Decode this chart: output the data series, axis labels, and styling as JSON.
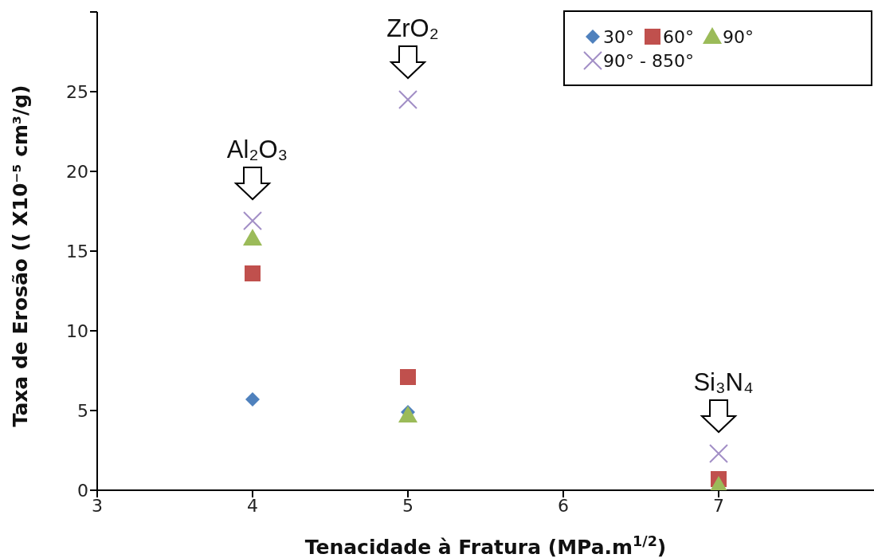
{
  "chart_data": {
    "type": "scatter",
    "xlabel": "Tenacidade à Fratura (MPa.m$^{1/2}$)",
    "ylabel": "Taxa de Erosão (( X10⁻⁵ cm³/g)",
    "x": [
      4,
      5,
      7
    ],
    "xlim": [
      3,
      8
    ],
    "xticks": [
      3,
      4,
      5,
      6,
      7
    ],
    "ylim": [
      0,
      30
    ],
    "yticks": [
      0,
      5,
      10,
      15,
      20,
      25,
      {
        "value": 30,
        "label": null
      }
    ],
    "legend": "top right",
    "series": [
      {
        "name": "30°",
        "color": "#4f81bd",
        "marker": "diamond",
        "values": [
          5.7,
          4.9,
          null
        ]
      },
      {
        "name": "60°",
        "color": "#c0504d",
        "marker": "square",
        "values": [
          13.6,
          7.1,
          0.7
        ]
      },
      {
        "name": "90°",
        "color": "#9bbb59",
        "marker": "triangle",
        "values": [
          15.8,
          4.7,
          0.3
        ]
      },
      {
        "name": "90° - 850°",
        "color": "#a28fc6",
        "marker": "cross",
        "values": [
          16.9,
          24.5,
          2.3
        ]
      }
    ],
    "annotations": [
      {
        "text": "Al₂O₃",
        "x": 4,
        "y": 16.9
      },
      {
        "text": "ZrO₂",
        "x": 5,
        "y": 24.5
      },
      {
        "text": "Si₃N₄",
        "x": 7,
        "y": 2.3
      }
    ]
  }
}
